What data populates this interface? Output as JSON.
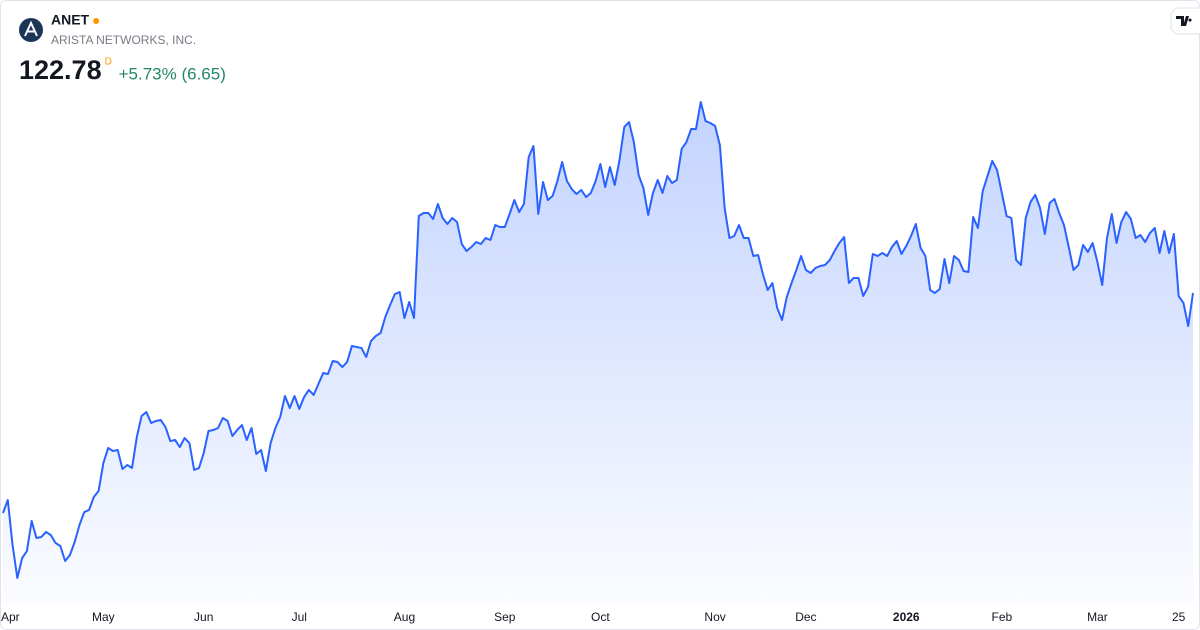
{
  "header": {
    "ticker": "ANET",
    "company": "ARISTA NETWORKS, INC.",
    "price": 122.78,
    "price_flag": "D",
    "change": "+5.73% (6.65)"
  },
  "chart_data": {
    "type": "area",
    "color": "#2962ff",
    "categories": [
      null,
      "Apr",
      null,
      null,
      null,
      null,
      null,
      null,
      null,
      null,
      null,
      null,
      null,
      null,
      null,
      null,
      null,
      null,
      null,
      null,
      null,
      "May",
      null,
      null,
      null,
      null,
      null,
      null,
      null,
      null,
      null,
      null,
      null,
      null,
      null,
      null,
      null,
      null,
      null,
      null,
      null,
      null,
      "Jun",
      null,
      null,
      null,
      null,
      null,
      null,
      null,
      null,
      null,
      null,
      null,
      null,
      null,
      null,
      null,
      null,
      null,
      null,
      null,
      "Jul",
      null,
      null,
      null,
      null,
      null,
      null,
      null,
      null,
      null,
      null,
      null,
      null,
      null,
      null,
      null,
      null,
      null,
      null,
      null,
      null,
      null,
      "Aug",
      null,
      null,
      null,
      null,
      null,
      null,
      null,
      null,
      null,
      null,
      null,
      null,
      null,
      null,
      null,
      null,
      null,
      null,
      null,
      null,
      "Sep",
      null,
      null,
      null,
      null,
      null,
      null,
      null,
      null,
      null,
      null,
      null,
      null,
      null,
      null,
      null,
      null,
      null,
      null,
      null,
      "Oct",
      null,
      null,
      null,
      null,
      null,
      null,
      null,
      null,
      null,
      null,
      null,
      null,
      null,
      null,
      null,
      null,
      null,
      null,
      null,
      null,
      null,
      null,
      null,
      "Nov",
      null,
      null,
      null,
      null,
      null,
      null,
      null,
      null,
      null,
      null,
      null,
      null,
      null,
      null,
      null,
      null,
      null,
      null,
      "Dec",
      null,
      null,
      null,
      null,
      null,
      null,
      null,
      null,
      null,
      null,
      null,
      null,
      null,
      null,
      null,
      null,
      null,
      null,
      null,
      null,
      "2026",
      null,
      null,
      null,
      null,
      null,
      null,
      null,
      null,
      null,
      null,
      null,
      null,
      null,
      null,
      null,
      null,
      null,
      null,
      null,
      "Feb",
      null,
      null,
      null,
      null,
      null,
      null,
      null,
      null,
      null,
      null,
      null,
      null,
      null,
      null,
      null,
      null,
      null,
      null,
      null,
      "Mar",
      null,
      null,
      null,
      null,
      null,
      null,
      null,
      null,
      null,
      null,
      null,
      null,
      null,
      null,
      null,
      null,
      "25",
      null,
      null,
      null
    ],
    "values": [
      73.85,
      76.74,
      66.74,
      59.4,
      63.84,
      65.4,
      72.07,
      68.29,
      68.51,
      69.63,
      68.96,
      67.18,
      66.51,
      63.18,
      64.51,
      67.4,
      71.18,
      74.07,
      74.52,
      77.41,
      78.74,
      84.97,
      88.31,
      87.64,
      87.86,
      83.64,
      84.53,
      83.86,
      90.75,
      95.42,
      96.31,
      93.87,
      94.31,
      94.54,
      92.98,
      89.86,
      90.09,
      88.53,
      90.53,
      89.42,
      83.42,
      83.86,
      87.2,
      92.09,
      92.31,
      92.76,
      94.98,
      94.31,
      90.98,
      92.31,
      93.42,
      90.09,
      92.76,
      86.97,
      87.86,
      83.19,
      89.42,
      92.76,
      95.2,
      99.87,
      97.2,
      99.87,
      96.98,
      99.65,
      101.21,
      100.1,
      102.54,
      104.99,
      104.77,
      107.66,
      107.43,
      106.32,
      107.43,
      110.99,
      110.77,
      110.55,
      108.55,
      112.1,
      113.22,
      113.88,
      117.44,
      120.11,
      122.56,
      123.0,
      117.22,
      120.78,
      117.22,
      139.9,
      140.57,
      140.57,
      139.24,
      142.57,
      139.46,
      138.13,
      139.46,
      138.57,
      133.68,
      132.12,
      133.01,
      134.12,
      133.68,
      135.01,
      134.57,
      137.9,
      137.46,
      137.46,
      140.35,
      143.46,
      140.79,
      142.57,
      153.03,
      155.47,
      140.35,
      147.47,
      143.46,
      144.35,
      147.69,
      151.91,
      147.69,
      145.91,
      144.8,
      145.69,
      144.13,
      145.02,
      147.69,
      151.47,
      146.35,
      150.8,
      146.8,
      152.36,
      159.7,
      160.81,
      156.36,
      149.02,
      146.13,
      140.13,
      145.02,
      147.91,
      145.02,
      148.8,
      147.24,
      147.91,
      154.81,
      156.36,
      159.25,
      159.25,
      165.26,
      161.03,
      160.59,
      159.92,
      155.7,
      141.68,
      135.01,
      135.46,
      137.9,
      135.01,
      135.01,
      131.01,
      131.23,
      127.01,
      123.45,
      125.0,
      119.44,
      116.78,
      121.89,
      125.0,
      127.9,
      131.01,
      127.9,
      127.23,
      128.34,
      128.78,
      129.01,
      130.12,
      132.12,
      133.9,
      135.23,
      125.0,
      126.12,
      126.12,
      122.11,
      124.11,
      131.45,
      131.01,
      131.68,
      131.01,
      133.01,
      134.34,
      131.45,
      133.23,
      135.46,
      138.13,
      132.79,
      131.01,
      123.45,
      122.78,
      123.67,
      130.34,
      125.0,
      131.01,
      130.12,
      127.67,
      127.45,
      139.68,
      137.24,
      145.46,
      148.8,
      152.14,
      150.14,
      145.02,
      139.9,
      139.46,
      130.12,
      129.01,
      139.46,
      143.02,
      144.58,
      141.68,
      135.9,
      142.8,
      143.69,
      140.57,
      137.9,
      133.01,
      127.9,
      129.01,
      133.46,
      131.9,
      133.9,
      129.67,
      124.56,
      135.01,
      140.35,
      133.9,
      138.57,
      140.79,
      139.24,
      135.01,
      135.68,
      134.12,
      136.12,
      137.24,
      131.68,
      136.57,
      131.68,
      135.9,
      122.11,
      120.56,
      115.44,
      122.78
    ]
  }
}
